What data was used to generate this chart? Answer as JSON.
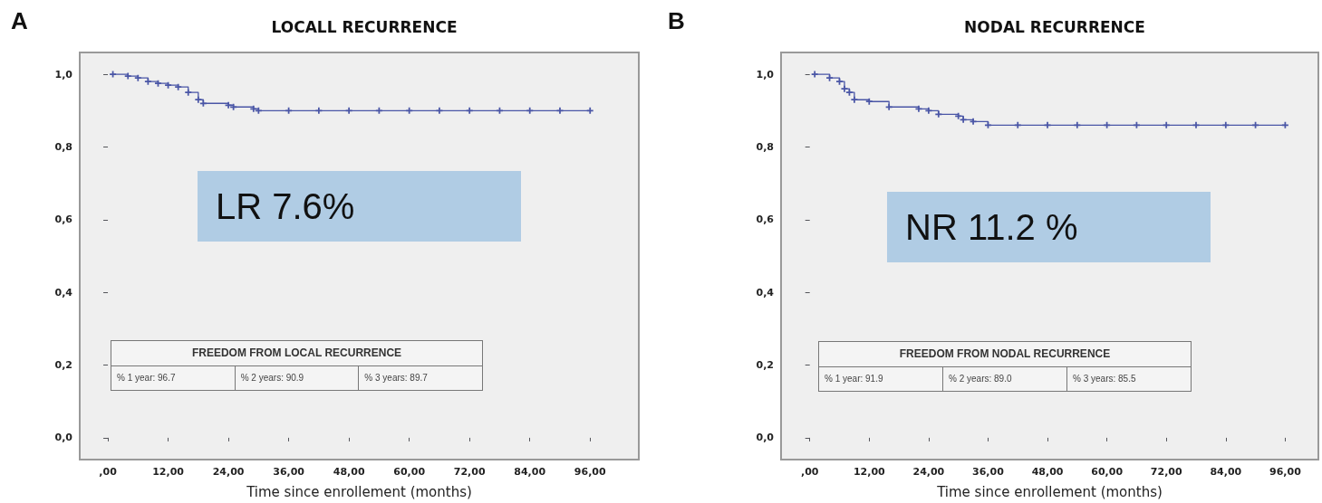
{
  "chart_data": [
    {
      "type": "step",
      "title": "LOCALL RECURRENCE",
      "xlabel": "Time since enrollement (months)",
      "x": [
        1,
        4,
        6,
        8,
        10,
        12,
        14,
        16,
        18,
        19,
        24,
        25,
        29,
        30,
        36,
        42,
        48,
        54,
        60,
        66,
        72,
        78,
        84,
        90,
        96
      ],
      "series": [
        {
          "color": "#4a56a6",
          "values": [
            1.0,
            0.995,
            0.99,
            0.98,
            0.975,
            0.97,
            0.965,
            0.95,
            0.93,
            0.92,
            0.915,
            0.91,
            0.905,
            0.9,
            0.9,
            0.9,
            0.9,
            0.9,
            0.9,
            0.9,
            0.9,
            0.9,
            0.9,
            0.9,
            0.9
          ]
        }
      ],
      "xlim": [
        -5.6,
        105.7
      ],
      "ylim": [
        -0.06,
        1.06
      ],
      "xticks": [
        {
          "value": 0,
          "label": ",00"
        },
        {
          "value": 12,
          "label": "12,00"
        },
        {
          "value": 24,
          "label": "24,00"
        },
        {
          "value": 36,
          "label": "36,00"
        },
        {
          "value": 48,
          "label": "48,00"
        },
        {
          "value": 60,
          "label": "60,00"
        },
        {
          "value": 72,
          "label": "72,00"
        },
        {
          "value": 84,
          "label": "84,00"
        },
        {
          "value": 96,
          "label": "96,00"
        }
      ],
      "yticks": [
        {
          "value": 0,
          "label": "0,0"
        },
        {
          "value": 0.2,
          "label": "0,2"
        },
        {
          "value": 0.4,
          "label": "0,4"
        },
        {
          "value": 0.6,
          "label": "0,6"
        },
        {
          "value": 0.8,
          "label": "0,8"
        },
        {
          "value": 1,
          "label": "1,0"
        }
      ],
      "grid": false,
      "marker": "cross",
      "line_style": "solid",
      "annotations": [
        "A",
        "LR 7.6%",
        "FREEDOM FROM LOCAL RECURRENCE",
        "% 1 year: 96.7",
        "% 2 years: 90.9",
        "% 3 years: 89.7"
      ]
    },
    {
      "type": "step",
      "title": "NODAL RECURRENCE",
      "xlabel": "Time since enrollement (months)",
      "x": [
        1,
        4,
        6,
        7,
        8,
        9,
        12,
        16,
        22,
        24,
        26,
        30,
        31,
        33,
        36,
        42,
        48,
        54,
        60,
        66,
        72,
        78,
        84,
        90,
        96
      ],
      "series": [
        {
          "color": "#4a56a6",
          "values": [
            1.0,
            0.99,
            0.98,
            0.96,
            0.95,
            0.93,
            0.925,
            0.91,
            0.905,
            0.9,
            0.89,
            0.885,
            0.875,
            0.87,
            0.86,
            0.86,
            0.86,
            0.86,
            0.86,
            0.86,
            0.86,
            0.86,
            0.86,
            0.86,
            0.86
          ]
        }
      ],
      "xlim": [
        -5.8,
        102.7
      ],
      "ylim": [
        -0.06,
        1.06
      ],
      "xticks": [
        {
          "value": 0,
          "label": ",00"
        },
        {
          "value": 12,
          "label": "12,00"
        },
        {
          "value": 24,
          "label": "24,00"
        },
        {
          "value": 36,
          "label": "36,00"
        },
        {
          "value": 48,
          "label": "48,00"
        },
        {
          "value": 60,
          "label": "60,00"
        },
        {
          "value": 72,
          "label": "72,00"
        },
        {
          "value": 84,
          "label": "84,00"
        },
        {
          "value": 96,
          "label": "96,00"
        }
      ],
      "yticks": [
        {
          "value": 0,
          "label": "0,0"
        },
        {
          "value": 0.2,
          "label": "0,2"
        },
        {
          "value": 0.4,
          "label": "0,4"
        },
        {
          "value": 0.6,
          "label": "0,6"
        },
        {
          "value": 0.8,
          "label": "0,8"
        },
        {
          "value": 1,
          "label": "1,0"
        }
      ],
      "grid": false,
      "marker": "cross",
      "line_style": "solid",
      "annotations": [
        "B",
        "NR 11.2 %",
        "FREEDOM FROM NODAL RECURRENCE",
        "% 1 year: 91.9",
        "% 2 years: 89.0",
        "% 3 years: 85.5"
      ]
    }
  ]
}
